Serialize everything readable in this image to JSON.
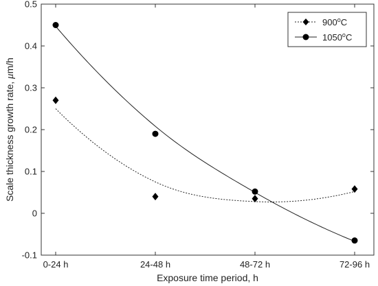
{
  "chart_data": {
    "type": "scatter",
    "categories": [
      "0-24 h",
      "24-48 h",
      "48-72 h",
      "72-96 h"
    ],
    "xlabel": "Exposure time period, h",
    "ylabel_prefix": "Scale thickness growth rate, ",
    "ylabel_unit_italic": "μ",
    "ylabel_suffix": "m/h",
    "ylim": [
      -0.1,
      0.5
    ],
    "yticks": [
      "-0.1",
      "0",
      "0.1",
      "0.2",
      "0.3",
      "0.4",
      "0.5"
    ],
    "legend_position": "top-right",
    "series": [
      {
        "name_main": "900",
        "name_sup": "o",
        "name_tail": "C",
        "marker": "diamond",
        "line_style": "dotted",
        "values": [
          0.27,
          0.04,
          0.035,
          0.058
        ],
        "fit": [
          0.25,
          0.075,
          0.028,
          0.052
        ]
      },
      {
        "name_main": "1050",
        "name_sup": "o",
        "name_tail": "C",
        "marker": "circle",
        "line_style": "solid",
        "values": [
          0.45,
          0.19,
          0.052,
          -0.065
        ],
        "fit": [
          0.447,
          0.208,
          0.05,
          -0.067
        ]
      }
    ]
  }
}
